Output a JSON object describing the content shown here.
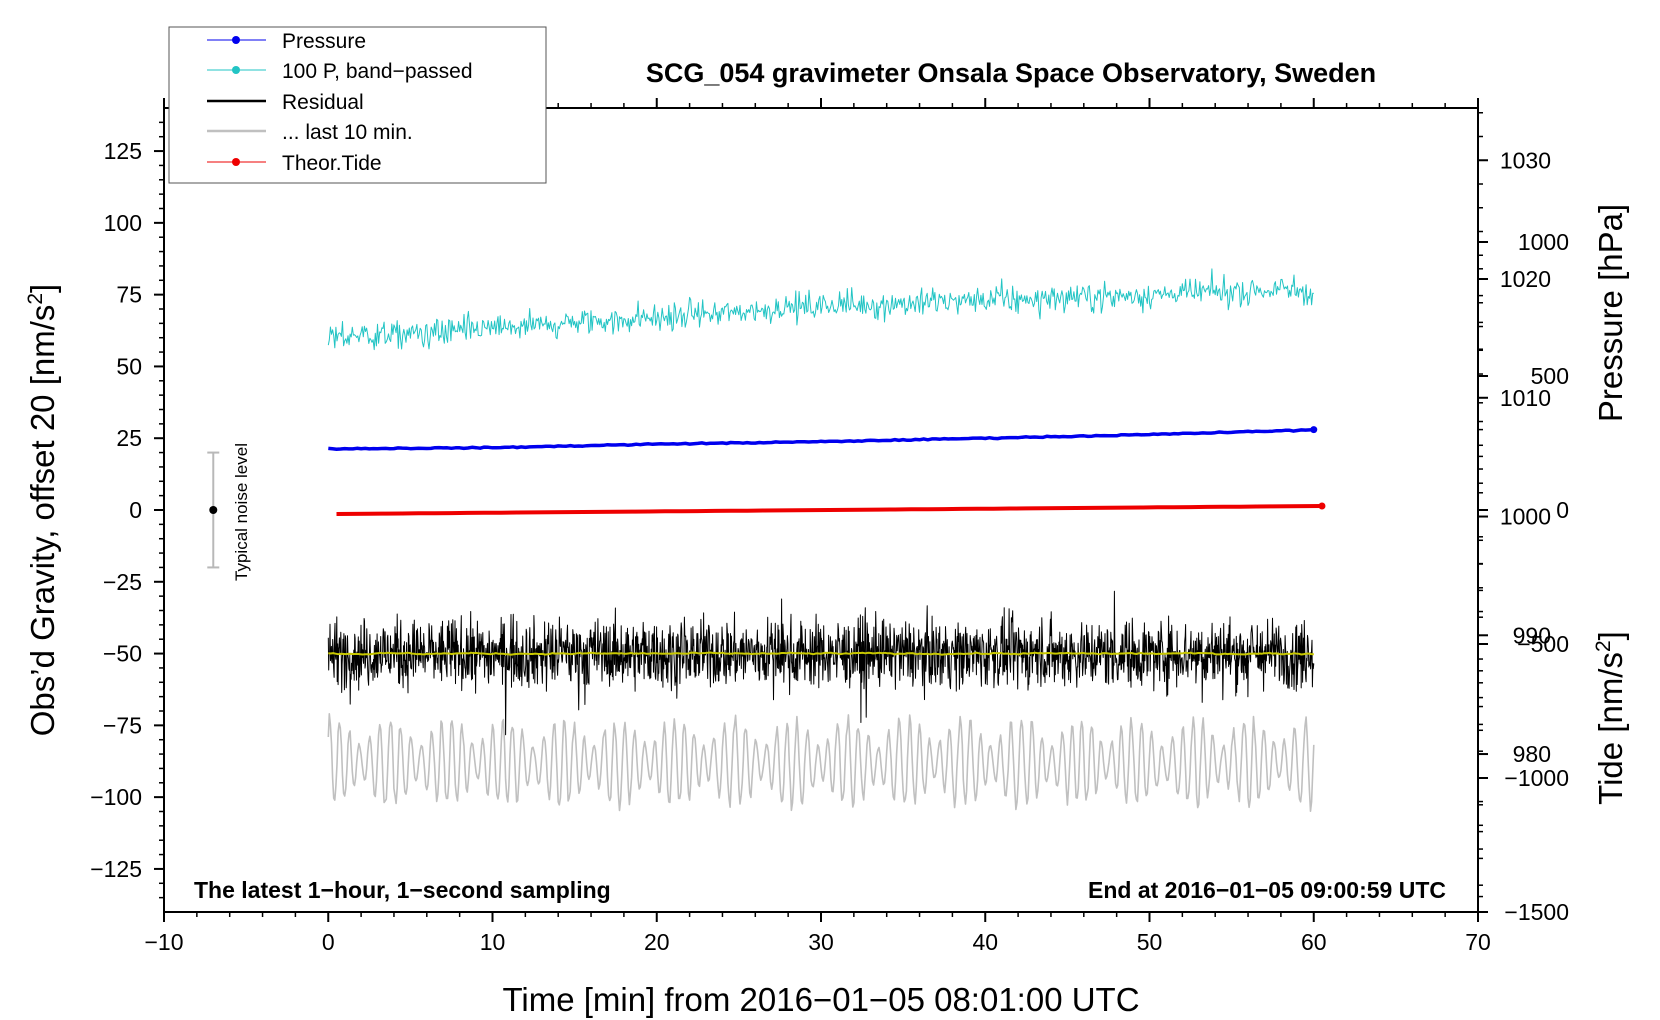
{
  "chart_data": {
    "type": "line",
    "title": "SCG_054 gravimeter Onsala Space Observatory, Sweden",
    "xlabel": "Time [min] from 2016−01−05 08:01:00 UTC",
    "ylabel_left_main": "Obs’d Gravity, offset 20 [nm/s",
    "ylabel_left_sup": "2",
    "ylabel_left_end": "]",
    "ylabel_right_top": "Pressure [hPa]",
    "ylabel_right_bottom_main": "Tide [nm/s",
    "ylabel_right_bottom_sup": "2",
    "ylabel_right_bottom_end": "]",
    "xlim": [
      -10,
      70
    ],
    "ylim_left": [
      -140,
      140
    ],
    "ylim_pressure": [
      966.7,
      1034.4
    ],
    "ylim_tide": [
      -1500,
      1500
    ],
    "x_ticks": [
      {
        "value": -10,
        "label": "−10"
      },
      {
        "value": 0,
        "label": "0"
      },
      {
        "value": 10,
        "label": "10"
      },
      {
        "value": 20,
        "label": "20"
      },
      {
        "value": 30,
        "label": "30"
      },
      {
        "value": 40,
        "label": "40"
      },
      {
        "value": 50,
        "label": "50"
      },
      {
        "value": 60,
        "label": "60"
      },
      {
        "value": 70,
        "label": "70"
      }
    ],
    "y_ticks_left": [
      {
        "value": 125,
        "label": "125"
      },
      {
        "value": 100,
        "label": "100"
      },
      {
        "value": 75,
        "label": "75"
      },
      {
        "value": 50,
        "label": "50"
      },
      {
        "value": 25,
        "label": "25"
      },
      {
        "value": 0,
        "label": "0"
      },
      {
        "value": -25,
        "label": "−25"
      },
      {
        "value": -50,
        "label": "−50"
      },
      {
        "value": -75,
        "label": "−75"
      },
      {
        "value": -100,
        "label": "−100"
      },
      {
        "value": -125,
        "label": "−125"
      }
    ],
    "y_ticks_pressure": [
      {
        "value": 1030,
        "label": "1030"
      },
      {
        "value": 1020,
        "label": "1020"
      },
      {
        "value": 1010,
        "label": "1010"
      },
      {
        "value": 1000,
        "label": "1000"
      },
      {
        "value": 990,
        "label": "990"
      },
      {
        "value": 980,
        "label": "980"
      }
    ],
    "y_ticks_tide": [
      {
        "value": 1000,
        "label": "1000"
      },
      {
        "value": 500,
        "label": "500"
      },
      {
        "value": 0,
        "label": "0"
      },
      {
        "value": -500,
        "label": "−500"
      },
      {
        "value": -1000,
        "label": "−1000"
      },
      {
        "value": -1500,
        "label": "−1500"
      }
    ],
    "legend": {
      "placement": "top-left",
      "entries": [
        {
          "label": "Pressure",
          "color": "#0000ee",
          "marker": true
        },
        {
          "label": "100 P, band−passed",
          "color": "#22c4c4",
          "marker": true
        },
        {
          "label": "Residual",
          "color": "#000000",
          "marker": false
        },
        {
          "label": "... last 10 min.",
          "color": "#c0c0c0",
          "marker": false
        },
        {
          "label": "Theor.Tide",
          "color": "#ee0000",
          "marker": true
        }
      ]
    },
    "annotations": {
      "bottom_left": "The latest 1−hour, 1−second sampling",
      "bottom_right": "End at 2016−01−05 09:00:59 UTC",
      "noise_label": "Typical noise level"
    },
    "noise_bar": {
      "x": -7,
      "y": 0,
      "low": -20,
      "high": 20
    },
    "series": [
      {
        "name": "Pressure",
        "axis": "pressure",
        "color": "#0000ee",
        "x": [
          0,
          10,
          20,
          30,
          40,
          50,
          60
        ],
        "y": [
          1005.7,
          1005.8,
          1006.1,
          1006.3,
          1006.6,
          1006.9,
          1007.3
        ]
      },
      {
        "name": "100 P, band−passed",
        "axis": "left",
        "color": "#22c4c4",
        "x": [
          0,
          10,
          20,
          30,
          40,
          50,
          60
        ],
        "y": [
          60,
          63,
          67,
          71,
          73,
          75,
          77
        ],
        "noise_amplitude": 12
      },
      {
        "name": "Residual",
        "axis": "left",
        "color": "#000000",
        "x": [
          0,
          60
        ],
        "y": [
          -50,
          -50
        ],
        "noise_amplitude": 20
      },
      {
        "name": "Residual (smoothed)",
        "axis": "left",
        "color": "#c8c800",
        "x": [
          0,
          60
        ],
        "y": [
          -50,
          -50
        ]
      },
      {
        "name": "... last 10 min.",
        "axis": "left",
        "color": "#c0c0c0",
        "x": [
          0,
          60
        ],
        "y": [
          -88,
          -88
        ],
        "noise_amplitude": 14
      },
      {
        "name": "Theor.Tide",
        "axis": "tide",
        "color": "#ee0000",
        "x": [
          0.5,
          60.5
        ],
        "y": [
          -15,
          15
        ]
      }
    ]
  }
}
